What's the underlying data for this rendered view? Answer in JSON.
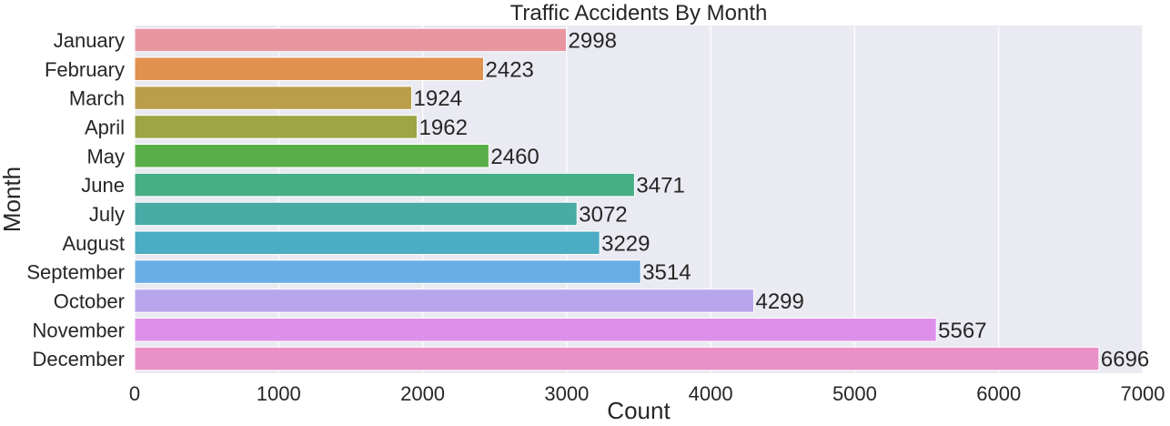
{
  "chart_data": {
    "type": "bar",
    "orientation": "horizontal",
    "title": "Traffic Accidents By Month",
    "xlabel": "Count",
    "ylabel": "Month",
    "xlim": [
      0,
      7000
    ],
    "xticks": [
      0,
      1000,
      2000,
      3000,
      4000,
      5000,
      6000,
      7000
    ],
    "grid": true,
    "categories": [
      "January",
      "February",
      "March",
      "April",
      "May",
      "June",
      "July",
      "August",
      "September",
      "October",
      "November",
      "December"
    ],
    "values": [
      2998,
      2423,
      1924,
      1962,
      2460,
      3471,
      3072,
      3229,
      3514,
      4299,
      5567,
      6696
    ],
    "colors": [
      "#ea96a1",
      "#e19150",
      "#b99f4a",
      "#9da544",
      "#5aae4a",
      "#47ae85",
      "#49aba6",
      "#4bacc4",
      "#68aee4",
      "#b8a6ec",
      "#de8fea",
      "#ea90c8"
    ],
    "background_color": "#eaeaf2"
  }
}
